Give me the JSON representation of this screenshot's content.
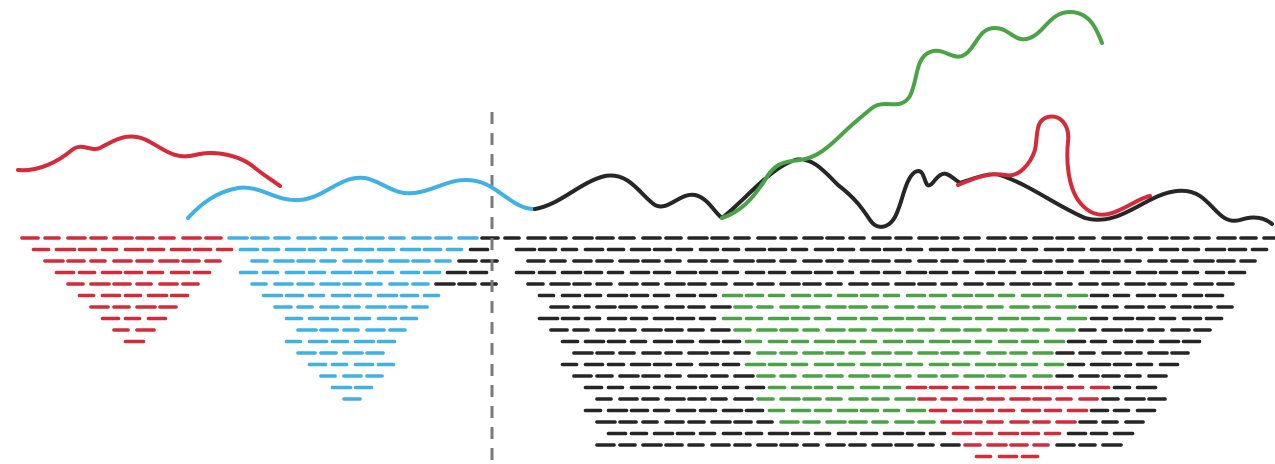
{
  "colors": {
    "red": "#d42a3a",
    "blue": "#3fb1e3",
    "green": "#4aa446",
    "black": "#262626",
    "divider": "#7a7a7a",
    "background": "#ffffff"
  },
  "curves": [
    {
      "name": "red-top-left-curve",
      "color_key": "red"
    },
    {
      "name": "blue-curve",
      "color_key": "blue"
    },
    {
      "name": "black-main-curve",
      "color_key": "black"
    },
    {
      "name": "green-branch-curve",
      "color_key": "green"
    },
    {
      "name": "red-loop-curve",
      "color_key": "red"
    }
  ],
  "regions": [
    {
      "name": "red-dash-field-left",
      "color_key": "red"
    },
    {
      "name": "blue-dash-field",
      "color_key": "blue"
    },
    {
      "name": "black-dash-field",
      "color_key": "black"
    },
    {
      "name": "green-dash-field",
      "color_key": "green"
    },
    {
      "name": "red-dash-field-right",
      "color_key": "red"
    }
  ]
}
